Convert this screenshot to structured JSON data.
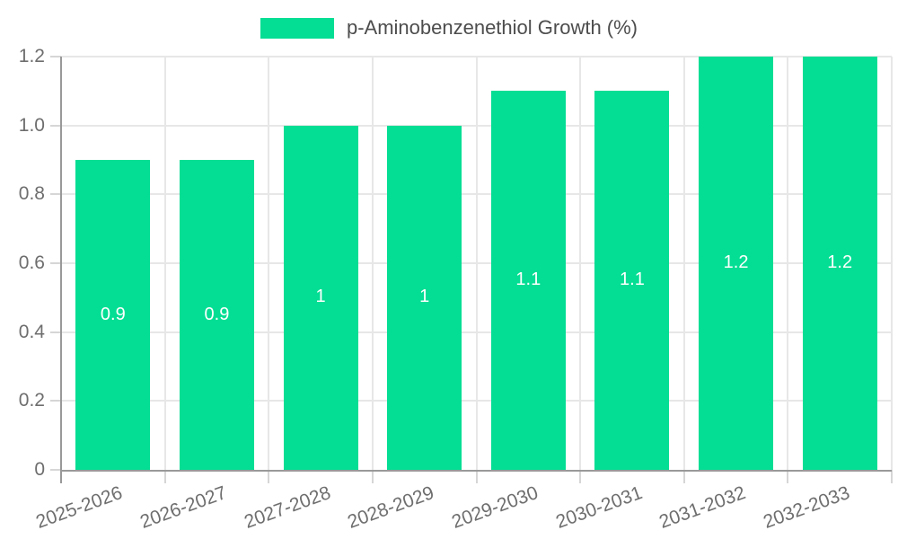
{
  "legend": {
    "label": "p-Aminobenzenethiol Growth (%)",
    "position": "top"
  },
  "chart_data": {
    "type": "bar",
    "title": "",
    "xlabel": "",
    "ylabel": "",
    "categories": [
      "2025-2026",
      "2026-2027",
      "2027-2028",
      "2028-2029",
      "2029-2030",
      "2030-2031",
      "2031-2032",
      "2032-2033"
    ],
    "series": [
      {
        "name": "p-Aminobenzenethiol Growth (%)",
        "values": [
          0.9,
          0.9,
          1.0,
          1.0,
          1.1,
          1.1,
          1.2,
          1.2
        ],
        "value_labels": [
          "0.9",
          "0.9",
          "1",
          "1",
          "1.1",
          "1.1",
          "1.2",
          "1.2"
        ]
      }
    ],
    "ylim": [
      0,
      1.2
    ],
    "yticks": [
      {
        "value": 0.0,
        "label": "0"
      },
      {
        "value": 0.2,
        "label": "0.2"
      },
      {
        "value": 0.4,
        "label": "0.4"
      },
      {
        "value": 0.6,
        "label": "0.6"
      },
      {
        "value": 0.8,
        "label": "0.8"
      },
      {
        "value": 1.0,
        "label": "1.0"
      },
      {
        "value": 1.2,
        "label": "1.2"
      }
    ],
    "grid": true,
    "legend_position": "top",
    "colors": {
      "bar": "#03DE94",
      "bar_value_text": "#ffffff",
      "gridline": "#e7e7e7",
      "tick_mark": "#d6d6d6",
      "axis_line": "#999999",
      "tick_text": "#6e6e6e",
      "legend_text": "#4d4d4d",
      "background": "#ffffff"
    }
  }
}
